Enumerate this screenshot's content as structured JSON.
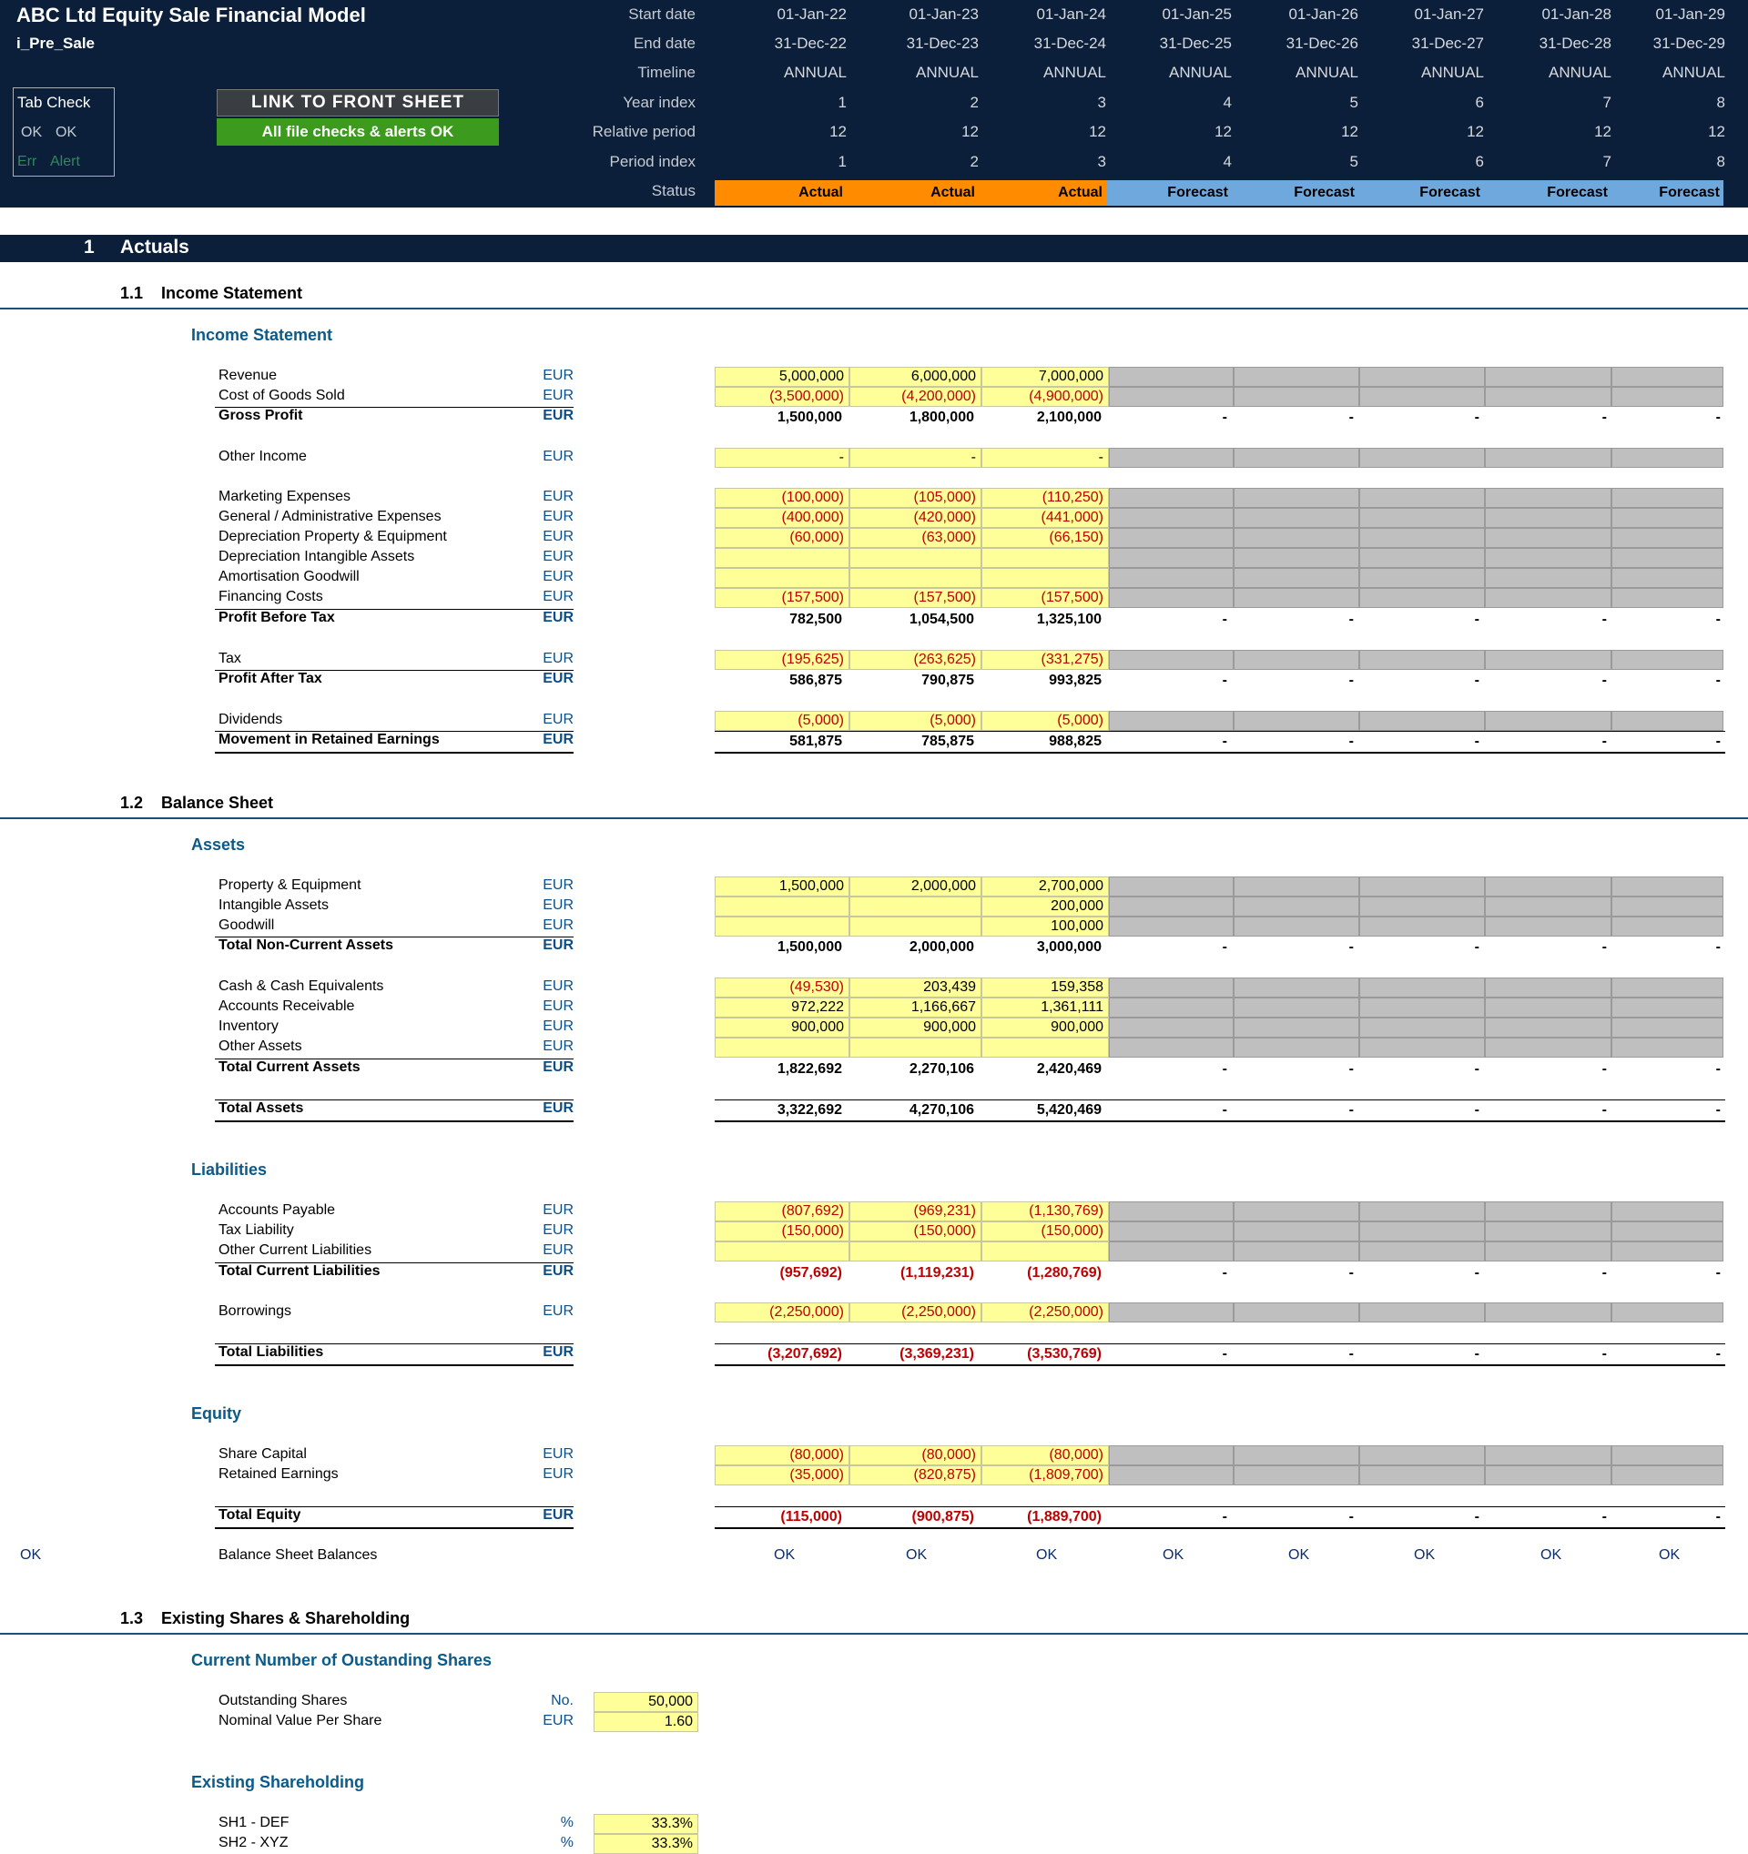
{
  "header": {
    "title": "ABC Ltd Equity Sale Financial Model",
    "sheet": "i_Pre_Sale",
    "tab_check": {
      "title": "Tab Check",
      "ok1": "OK",
      "ok2": "OK",
      "err": "Err",
      "alert": "Alert"
    },
    "link_button": "LINK TO FRONT SHEET",
    "file_check": "All file checks & alerts OK",
    "row_labels": [
      "Start date",
      "End date",
      "Timeline",
      "Year index",
      "Relative period",
      "Period index",
      "Status"
    ],
    "start": [
      "01-Jan-22",
      "01-Jan-23",
      "01-Jan-24",
      "01-Jan-25",
      "01-Jan-26",
      "01-Jan-27",
      "01-Jan-28",
      "01-Jan-29"
    ],
    "end": [
      "31-Dec-22",
      "31-Dec-23",
      "31-Dec-24",
      "31-Dec-25",
      "31-Dec-26",
      "31-Dec-27",
      "31-Dec-28",
      "31-Dec-29"
    ],
    "timeline": [
      "ANNUAL",
      "ANNUAL",
      "ANNUAL",
      "ANNUAL",
      "ANNUAL",
      "ANNUAL",
      "ANNUAL",
      "ANNUAL"
    ],
    "year_index": [
      "1",
      "2",
      "3",
      "4",
      "5",
      "6",
      "7",
      "8"
    ],
    "relative": [
      "12",
      "12",
      "12",
      "12",
      "12",
      "12",
      "12",
      "12"
    ],
    "period_index": [
      "1",
      "2",
      "3",
      "4",
      "5",
      "6",
      "7",
      "8"
    ],
    "status": [
      "Actual",
      "Actual",
      "Actual",
      "Forecast",
      "Forecast",
      "Forecast",
      "Forecast",
      "Forecast"
    ],
    "colors": {
      "actual": "#ff8c00",
      "forecast": "#6fa8dc"
    }
  },
  "section1": {
    "num": "1",
    "title": "Actuals"
  },
  "s11": {
    "num": "1.1",
    "title": "Income Statement",
    "sub": "Income Statement"
  },
  "s12": {
    "num": "1.2",
    "title": "Balance Sheet",
    "assets": "Assets",
    "liabilities": "Liabilities",
    "equity": "Equity"
  },
  "s13": {
    "num": "1.3",
    "title": "Existing Shares & Shareholding",
    "sub1": "Current Number of Oustanding Shares",
    "sub2": "Existing Shareholding"
  },
  "unit": "EUR",
  "dash": "-",
  "rows": {
    "revenue": {
      "label": "Revenue",
      "v": [
        "5,000,000",
        "6,000,000",
        "7,000,000"
      ]
    },
    "cogs": {
      "label": "Cost of Goods Sold",
      "v": [
        "(3,500,000)",
        "(4,200,000)",
        "(4,900,000)"
      ]
    },
    "gross": {
      "label": "Gross Profit",
      "v": [
        "1,500,000",
        "1,800,000",
        "2,100,000"
      ]
    },
    "other_income": {
      "label": "Other Income",
      "v": [
        "-",
        "-",
        "-"
      ]
    },
    "marketing": {
      "label": "Marketing Expenses",
      "v": [
        "(100,000)",
        "(105,000)",
        "(110,250)"
      ]
    },
    "ga": {
      "label": "General / Administrative Expenses",
      "v": [
        "(400,000)",
        "(420,000)",
        "(441,000)"
      ]
    },
    "dep_ppe": {
      "label": "Depreciation Property & Equipment",
      "v": [
        "(60,000)",
        "(63,000)",
        "(66,150)"
      ]
    },
    "dep_int": {
      "label": "Depreciation Intangible Assets",
      "v": [
        "",
        "",
        ""
      ]
    },
    "amort": {
      "label": "Amortisation Goodwill",
      "v": [
        "",
        "",
        ""
      ]
    },
    "fin": {
      "label": "Financing Costs",
      "v": [
        "(157,500)",
        "(157,500)",
        "(157,500)"
      ]
    },
    "pbt": {
      "label": "Profit Before Tax",
      "v": [
        "782,500",
        "1,054,500",
        "1,325,100"
      ]
    },
    "tax": {
      "label": "Tax",
      "v": [
        "(195,625)",
        "(263,625)",
        "(331,275)"
      ]
    },
    "pat": {
      "label": "Profit After Tax",
      "v": [
        "586,875",
        "790,875",
        "993,825"
      ]
    },
    "div": {
      "label": "Dividends",
      "v": [
        "(5,000)",
        "(5,000)",
        "(5,000)"
      ]
    },
    "mre": {
      "label": "Movement in Retained Earnings",
      "v": [
        "581,875",
        "785,875",
        "988,825"
      ]
    },
    "ppe": {
      "label": "Property & Equipment",
      "v": [
        "1,500,000",
        "2,000,000",
        "2,700,000"
      ]
    },
    "intang": {
      "label": "Intangible Assets",
      "v": [
        "",
        "",
        "200,000"
      ]
    },
    "goodwill": {
      "label": "Goodwill",
      "v": [
        "",
        "",
        "100,000"
      ]
    },
    "tnca": {
      "label": "Total Non-Current Assets",
      "v": [
        "1,500,000",
        "2,000,000",
        "3,000,000"
      ]
    },
    "cash": {
      "label": "Cash & Cash Equivalents",
      "v": [
        "(49,530)",
        "203,439",
        "159,358"
      ]
    },
    "ar": {
      "label": "Accounts Receivable",
      "v": [
        "972,222",
        "1,166,667",
        "1,361,111"
      ]
    },
    "inv": {
      "label": "Inventory",
      "v": [
        "900,000",
        "900,000",
        "900,000"
      ]
    },
    "oa": {
      "label": "Other Assets",
      "v": [
        "",
        "",
        ""
      ]
    },
    "tca": {
      "label": "Total Current Assets",
      "v": [
        "1,822,692",
        "2,270,106",
        "2,420,469"
      ]
    },
    "ta": {
      "label": "Total Assets",
      "v": [
        "3,322,692",
        "4,270,106",
        "5,420,469"
      ]
    },
    "ap": {
      "label": "Accounts Payable",
      "v": [
        "(807,692)",
        "(969,231)",
        "(1,130,769)"
      ]
    },
    "taxl": {
      "label": "Tax Liability",
      "v": [
        "(150,000)",
        "(150,000)",
        "(150,000)"
      ]
    },
    "ocl": {
      "label": "Other Current Liabilities",
      "v": [
        "",
        "",
        ""
      ]
    },
    "tcl": {
      "label": "Total Current Liabilities",
      "v": [
        "(957,692)",
        "(1,119,231)",
        "(1,280,769)"
      ]
    },
    "borr": {
      "label": "Borrowings",
      "v": [
        "(2,250,000)",
        "(2,250,000)",
        "(2,250,000)"
      ]
    },
    "tl": {
      "label": "Total Liabilities",
      "v": [
        "(3,207,692)",
        "(3,369,231)",
        "(3,530,769)"
      ]
    },
    "sc": {
      "label": "Share Capital",
      "v": [
        "(80,000)",
        "(80,000)",
        "(80,000)"
      ]
    },
    "re": {
      "label": "Retained Earnings",
      "v": [
        "(35,000)",
        "(820,875)",
        "(1,809,700)"
      ]
    },
    "te": {
      "label": "Total Equity",
      "v": [
        "(115,000)",
        "(900,875)",
        "(1,889,700)"
      ]
    }
  },
  "balance": {
    "flag": "OK",
    "label": "Balance Sheet Balances",
    "ok": [
      "OK",
      "OK",
      "OK",
      "OK",
      "OK",
      "OK",
      "OK",
      "OK"
    ]
  },
  "shares": {
    "outstanding": {
      "label": "Outstanding Shares",
      "unit": "No.",
      "v": "50,000"
    },
    "nominal": {
      "label": "Nominal Value Per Share",
      "unit": "EUR",
      "v": "1.60"
    },
    "sh1": {
      "label": "SH1 - DEF",
      "unit": "%",
      "v": "33.3%"
    },
    "sh2": {
      "label": "SH2 - XYZ",
      "unit": "%",
      "v": "33.3%"
    }
  }
}
